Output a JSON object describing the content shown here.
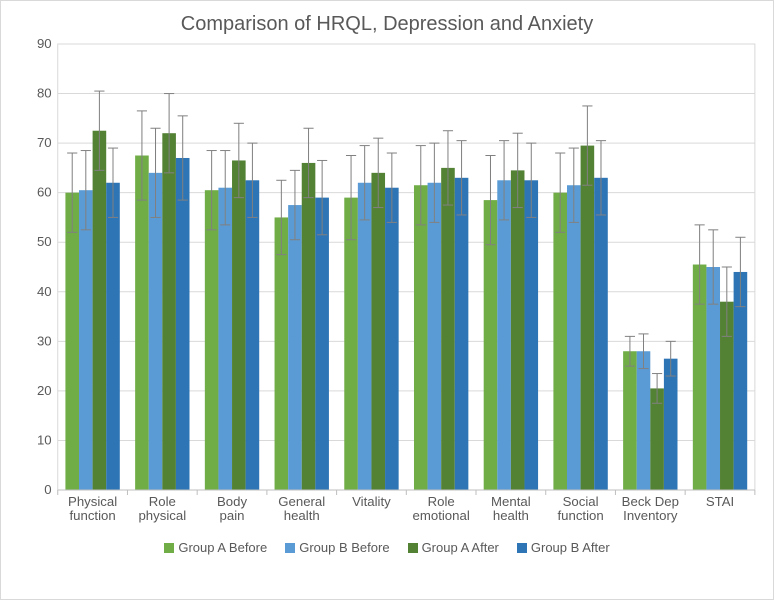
{
  "chart": {
    "type": "bar",
    "title": "Comparison of HRQL, Depression and Anxiety",
    "title_fontsize": 20,
    "title_color": "#595959",
    "background_color": "#ffffff",
    "plot_border_color": "#d9d9d9",
    "grid_color": "#d9d9d9",
    "axis_color": "#bfbfbf",
    "error_bar_color": "#808080",
    "tick_label_color": "#595959",
    "tick_fontsize": 13,
    "categories": [
      "Physical function",
      "Role physical",
      "Body pain",
      "General health",
      "Vitality",
      "Role emotional",
      "Mental health",
      "Social function",
      "Beck Dep Inventory",
      "STAI"
    ],
    "series": [
      {
        "label": "Group A Before",
        "color": "#70ad47",
        "values": [
          60.0,
          67.5,
          60.5,
          55.0,
          59.0,
          61.5,
          58.5,
          60.0,
          28.0,
          45.5
        ],
        "errors": [
          8.0,
          9.0,
          8.0,
          7.5,
          8.5,
          8.0,
          9.0,
          8.0,
          3.0,
          8.0
        ]
      },
      {
        "label": "Group B Before",
        "color": "#5b9bd5",
        "values": [
          60.5,
          64.0,
          61.0,
          57.5,
          62.0,
          62.0,
          62.5,
          61.5,
          28.0,
          45.0
        ],
        "errors": [
          8.0,
          9.0,
          7.5,
          7.0,
          7.5,
          8.0,
          8.0,
          7.5,
          3.5,
          7.5
        ]
      },
      {
        "label": "Group A After",
        "color": "#548235",
        "values": [
          72.5,
          72.0,
          66.5,
          66.0,
          64.0,
          65.0,
          64.5,
          69.5,
          20.5,
          38.0
        ],
        "errors": [
          8.0,
          8.0,
          7.5,
          7.0,
          7.0,
          7.5,
          7.5,
          8.0,
          3.0,
          7.0
        ]
      },
      {
        "label": "Group B After",
        "color": "#2e75b6",
        "values": [
          62.0,
          67.0,
          62.5,
          59.0,
          61.0,
          63.0,
          62.5,
          63.0,
          26.5,
          44.0
        ],
        "errors": [
          7.0,
          8.5,
          7.5,
          7.5,
          7.0,
          7.5,
          7.5,
          7.5,
          3.5,
          7.0
        ]
      }
    ],
    "ylim": [
      0,
      90
    ],
    "ytick_step": 10,
    "bar_group_gap_ratio": 0.22
  }
}
